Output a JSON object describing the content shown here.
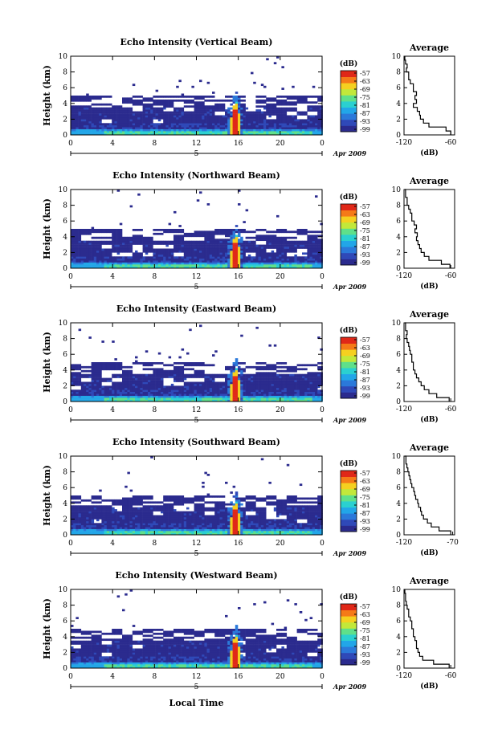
{
  "figure": {
    "xlabel": "Local Time",
    "x_ticks": [
      "0",
      "4",
      "8",
      "12",
      "16",
      "20",
      "0"
    ],
    "day_label": "5",
    "month_label": "Apr 2009",
    "ylabel": "Height (km)",
    "y_ticks": [
      "0",
      "2",
      "4",
      "6",
      "8",
      "10"
    ],
    "colorbar_unit": "(dB)",
    "colorbar_ticks": [
      "-57",
      "-63",
      "-69",
      "-75",
      "-81",
      "-87",
      "-93",
      "-99"
    ],
    "profile_title": "Average",
    "profile_xlabel": "(dB)"
  },
  "colors": {
    "colormap": [
      "#2b2b8e",
      "#2f49b8",
      "#2b79da",
      "#22a6e8",
      "#2bd0d0",
      "#5fe08a",
      "#c2e83a",
      "#f5d020",
      "#f57a18",
      "#e02818"
    ],
    "profile_line": "#000000"
  },
  "chart_data": [
    {
      "type": "heatmap",
      "title": "Echo Intensity (Vertical Beam)",
      "x_range_hours": [
        0,
        24
      ],
      "y_range_km": [
        0,
        10
      ],
      "z_range_db": [
        -99,
        -57
      ],
      "profile": {
        "title": "Average",
        "xlabel": "(dB)",
        "x_ticks": [
          "-120",
          "-60"
        ],
        "xlim": [
          -120,
          -55
        ],
        "height_km": [
          0,
          0.5,
          1,
          1.5,
          2,
          2.5,
          3,
          3.5,
          4,
          4.5,
          5,
          5.5,
          6,
          6.5,
          7,
          7.5,
          8,
          8.5,
          9,
          9.5,
          10
        ],
        "echo_db": [
          -60,
          -66,
          -88,
          -95,
          -99,
          -100,
          -103,
          -108,
          -104,
          -106,
          -104,
          -108,
          -108,
          -112,
          -114,
          -114,
          -117,
          -116,
          -118,
          -119,
          -119
        ]
      }
    },
    {
      "type": "heatmap",
      "title": "Echo Intensity (Northward Beam)",
      "x_range_hours": [
        0,
        24
      ],
      "y_range_km": [
        0,
        10
      ],
      "z_range_db": [
        -99,
        -57
      ],
      "profile": {
        "title": "Average",
        "xlabel": "(dB)",
        "x_ticks": [
          "-120",
          "-60"
        ],
        "xlim": [
          -120,
          -55
        ],
        "height_km": [
          0,
          0.5,
          1,
          1.5,
          2,
          2.5,
          3,
          3.5,
          4,
          4.5,
          5,
          5.5,
          6,
          6.5,
          7,
          7.5,
          8,
          8.5,
          9,
          9.5,
          10
        ],
        "echo_db": [
          -61,
          -72,
          -88,
          -94,
          -98,
          -100,
          -102,
          -104,
          -103,
          -106,
          -104,
          -107,
          -110,
          -110,
          -112,
          -114,
          -116,
          -116,
          -118,
          -118,
          -119
        ]
      }
    },
    {
      "type": "heatmap",
      "title": "Echo Intensity (Eastward Beam)",
      "x_range_hours": [
        0,
        24
      ],
      "y_range_km": [
        0,
        10
      ],
      "z_range_db": [
        -99,
        -57
      ],
      "profile": {
        "title": "Average",
        "xlabel": "(dB)",
        "x_ticks": [
          "-120",
          "-60"
        ],
        "xlim": [
          -120,
          -55
        ],
        "height_km": [
          0,
          0.5,
          1,
          1.5,
          2,
          2.5,
          3,
          3.5,
          4,
          4.5,
          5,
          5.5,
          6,
          6.5,
          7,
          7.5,
          8,
          8.5,
          9,
          9.5,
          10
        ],
        "echo_db": [
          -62,
          -78,
          -88,
          -94,
          -98,
          -101,
          -104,
          -106,
          -108,
          -108,
          -110,
          -110,
          -112,
          -113,
          -114,
          -116,
          -117,
          -116,
          -118,
          -118,
          -119
        ]
      }
    },
    {
      "type": "heatmap",
      "title": "Echo Intensity (Southward Beam)",
      "x_range_hours": [
        0,
        24
      ],
      "y_range_km": [
        0,
        10
      ],
      "z_range_db": [
        -99,
        -57
      ],
      "profile": {
        "title": "Average",
        "xlabel": "(dB)",
        "x_ticks": [
          "-120",
          "-70"
        ],
        "xlim": [
          -120,
          -68
        ],
        "height_km": [
          0,
          0.5,
          1,
          1.5,
          2,
          2.5,
          3,
          3.5,
          4,
          4.5,
          5,
          5.5,
          6,
          6.5,
          7,
          7.5,
          8,
          8.5,
          9,
          9.5,
          10
        ],
        "echo_db": [
          -72,
          -84,
          -92,
          -96,
          -100,
          -102,
          -103,
          -105,
          -106,
          -108,
          -109,
          -110,
          -112,
          -113,
          -114,
          -115,
          -116,
          -117,
          -118,
          -118,
          -119
        ]
      }
    },
    {
      "type": "heatmap",
      "title": "Echo Intensity (Westward Beam)",
      "x_range_hours": [
        0,
        24
      ],
      "y_range_km": [
        0,
        10
      ],
      "z_range_db": [
        -99,
        -57
      ],
      "profile": {
        "title": "Average",
        "xlabel": "(dB)",
        "x_ticks": [
          "-120",
          "-60"
        ],
        "xlim": [
          -120,
          -55
        ],
        "height_km": [
          0,
          0.5,
          1,
          1.5,
          2,
          2.5,
          3,
          3.5,
          4,
          4.5,
          5,
          5.5,
          6,
          6.5,
          7,
          7.5,
          8,
          8.5,
          9,
          9.5,
          10
        ],
        "echo_db": [
          -62,
          -82,
          -96,
          -100,
          -102,
          -104,
          -104,
          -106,
          -108,
          -108,
          -110,
          -110,
          -112,
          -114,
          -114,
          -116,
          -117,
          -118,
          -118,
          -119,
          -119
        ]
      }
    }
  ]
}
